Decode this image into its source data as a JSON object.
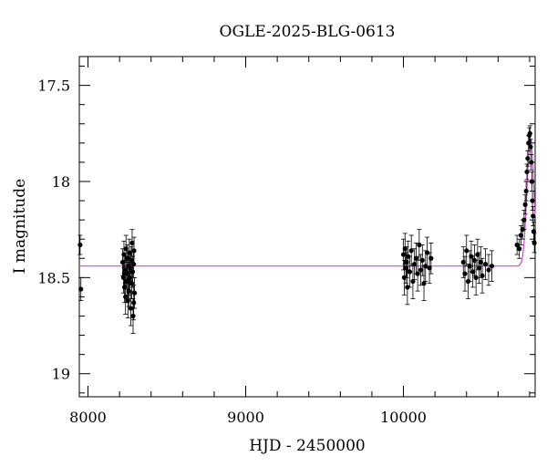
{
  "chart_data": {
    "type": "scatter",
    "title": "OGLE-2025-BLG-0613",
    "xlabel": "HJD - 2450000",
    "ylabel": "I magnitude",
    "xlim": [
      7945,
      10835
    ],
    "ylim": [
      19.12,
      17.35
    ],
    "y_inverted": true,
    "x_ticks": [
      8000,
      9000,
      10000
    ],
    "y_ticks": [
      17.5,
      18,
      18.5,
      19
    ],
    "y_tick_labels": [
      "17.5",
      "18",
      "18.5",
      "19"
    ],
    "grid": false,
    "model_color": "#e040e0",
    "model_curve": {
      "baseline": 18.44,
      "peak_time": 10805,
      "peak_mag": 17.78,
      "width_days": 22
    },
    "series": [
      {
        "marker": "filled-circle",
        "color": "#000000",
        "points": [
          [
            7950,
            18.33,
            0.05
          ],
          [
            7955,
            18.56,
            0.06
          ],
          [
            8220,
            18.42,
            0.07
          ],
          [
            8225,
            18.5,
            0.08
          ],
          [
            8228,
            18.38,
            0.07
          ],
          [
            8232,
            18.55,
            0.08
          ],
          [
            8235,
            18.46,
            0.07
          ],
          [
            8238,
            18.6,
            0.09
          ],
          [
            8241,
            18.35,
            0.07
          ],
          [
            8244,
            18.48,
            0.08
          ],
          [
            8247,
            18.52,
            0.08
          ],
          [
            8250,
            18.4,
            0.07
          ],
          [
            8253,
            18.62,
            0.09
          ],
          [
            8256,
            18.44,
            0.07
          ],
          [
            8259,
            18.57,
            0.08
          ],
          [
            8262,
            18.37,
            0.07
          ],
          [
            8265,
            18.5,
            0.08
          ],
          [
            8268,
            18.45,
            0.07
          ],
          [
            8271,
            18.66,
            0.09
          ],
          [
            8274,
            18.41,
            0.07
          ],
          [
            8277,
            18.53,
            0.08
          ],
          [
            8280,
            18.32,
            0.07
          ],
          [
            8283,
            18.47,
            0.08
          ],
          [
            8286,
            18.7,
            0.09
          ],
          [
            8289,
            18.43,
            0.07
          ],
          [
            8292,
            18.36,
            0.07
          ],
          [
            8295,
            18.58,
            0.08
          ],
          [
            8230,
            18.48,
            0.07
          ],
          [
            8260,
            18.51,
            0.08
          ],
          [
            8290,
            18.63,
            0.09
          ],
          [
            10000,
            18.38,
            0.08
          ],
          [
            10005,
            18.5,
            0.09
          ],
          [
            10010,
            18.35,
            0.08
          ],
          [
            10015,
            18.45,
            0.08
          ],
          [
            10020,
            18.42,
            0.08
          ],
          [
            10025,
            18.55,
            0.09
          ],
          [
            10030,
            18.39,
            0.08
          ],
          [
            10040,
            18.47,
            0.08
          ],
          [
            10050,
            18.36,
            0.08
          ],
          [
            10060,
            18.52,
            0.09
          ],
          [
            10070,
            18.43,
            0.08
          ],
          [
            10080,
            18.4,
            0.08
          ],
          [
            10090,
            18.48,
            0.09
          ],
          [
            10100,
            18.33,
            0.08
          ],
          [
            10110,
            18.46,
            0.08
          ],
          [
            10120,
            18.41,
            0.08
          ],
          [
            10130,
            18.53,
            0.09
          ],
          [
            10140,
            18.44,
            0.08
          ],
          [
            10150,
            18.37,
            0.08
          ],
          [
            10165,
            18.45,
            0.08
          ],
          [
            10175,
            18.4,
            0.08
          ],
          [
            10380,
            18.42,
            0.08
          ],
          [
            10390,
            18.48,
            0.09
          ],
          [
            10400,
            18.36,
            0.08
          ],
          [
            10410,
            18.52,
            0.09
          ],
          [
            10420,
            18.44,
            0.08
          ],
          [
            10430,
            18.39,
            0.08
          ],
          [
            10440,
            18.47,
            0.08
          ],
          [
            10450,
            18.41,
            0.08
          ],
          [
            10460,
            18.5,
            0.09
          ],
          [
            10470,
            18.38,
            0.08
          ],
          [
            10480,
            18.45,
            0.08
          ],
          [
            10490,
            18.42,
            0.08
          ],
          [
            10500,
            18.49,
            0.09
          ],
          [
            10520,
            18.43,
            0.08
          ],
          [
            10540,
            18.46,
            0.08
          ],
          [
            10560,
            18.44,
            0.08
          ],
          [
            10720,
            18.33,
            0.05
          ],
          [
            10735,
            18.35,
            0.05
          ],
          [
            10745,
            18.28,
            0.05
          ],
          [
            10755,
            18.25,
            0.05
          ],
          [
            10765,
            18.2,
            0.05
          ],
          [
            10772,
            18.12,
            0.05
          ],
          [
            10778,
            18.05,
            0.05
          ],
          [
            10783,
            17.95,
            0.04
          ],
          [
            10788,
            17.88,
            0.04
          ],
          [
            10793,
            17.8,
            0.04
          ],
          [
            10798,
            17.76,
            0.04
          ],
          [
            10802,
            17.75,
            0.04
          ],
          [
            10806,
            17.82,
            0.04
          ],
          [
            10810,
            17.9,
            0.04
          ],
          [
            10814,
            18.0,
            0.05
          ],
          [
            10818,
            18.1,
            0.05
          ],
          [
            10822,
            18.18,
            0.05
          ],
          [
            10826,
            18.26,
            0.05
          ],
          [
            10830,
            18.32,
            0.05
          ]
        ]
      }
    ]
  }
}
